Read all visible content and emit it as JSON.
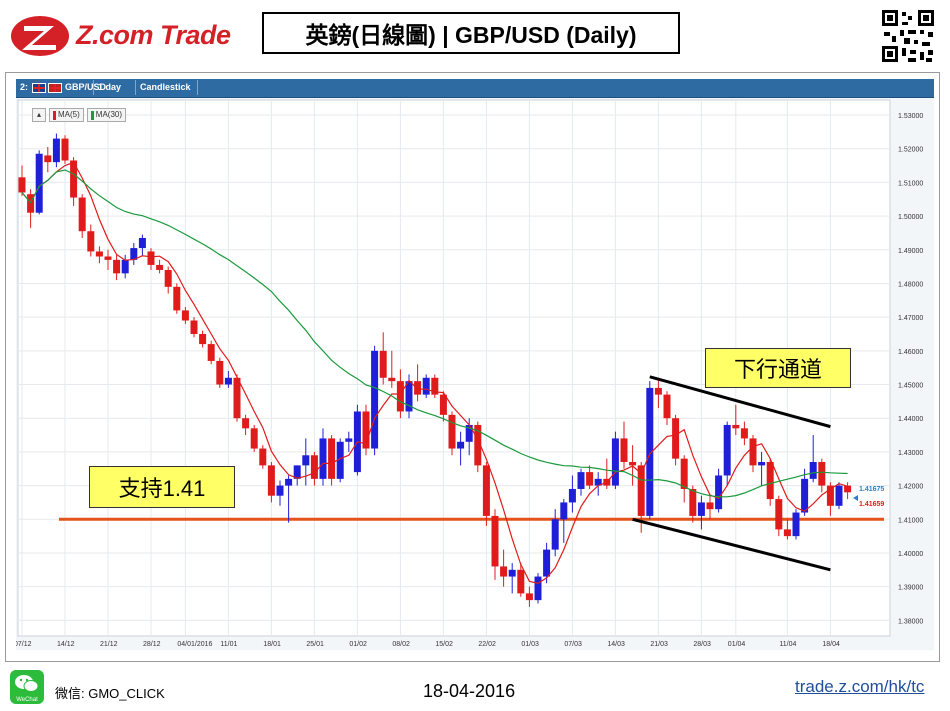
{
  "header": {
    "logo_text": "Z.com Trade",
    "title": "英鎊(日線圖) | GBP/USD (Daily)"
  },
  "toolbar": {
    "index": "2:",
    "symbol": "GBP/USD",
    "timeframe": "1 day",
    "chart_style": "Candlestick"
  },
  "legend": {
    "ma5_label": "MA(5)",
    "ma30_label": "MA(30)"
  },
  "annotations": {
    "support_label": "支持1.41",
    "channel_label": "下行通道"
  },
  "price_labels": {
    "current_blue": "1.41675",
    "current_red": "1.41659"
  },
  "colors": {
    "up_candle": "#1f1fd8",
    "down_candle": "#e01b1b",
    "ma5": "#e01b1b",
    "ma30": "#1a9a3c",
    "support_line": "#e5531a",
    "toolbar": "#2f6ba3"
  },
  "chart_data": {
    "type": "candlestick",
    "title": "GBP/USD 1 day Candlestick",
    "ylim": [
      1.376,
      1.536
    ],
    "y_ticks": [
      "1.53000",
      "1.52000",
      "1.51000",
      "1.50000",
      "1.49000",
      "1.48000",
      "1.47000",
      "1.46000",
      "1.45000",
      "1.44000",
      "1.43000",
      "1.42000",
      "1.41000",
      "1.40000",
      "1.39000",
      "1.38000"
    ],
    "x_labels": [
      {
        "i": 0,
        "label": "07/12"
      },
      {
        "i": 5,
        "label": "14/12"
      },
      {
        "i": 10,
        "label": "21/12"
      },
      {
        "i": 15,
        "label": "28/12"
      },
      {
        "i": 19,
        "label": "04/01/2016"
      },
      {
        "i": 24,
        "label": "11/01"
      },
      {
        "i": 29,
        "label": "18/01"
      },
      {
        "i": 34,
        "label": "25/01"
      },
      {
        "i": 39,
        "label": "01/02"
      },
      {
        "i": 44,
        "label": "08/02"
      },
      {
        "i": 49,
        "label": "15/02"
      },
      {
        "i": 54,
        "label": "22/02"
      },
      {
        "i": 59,
        "label": "01/03"
      },
      {
        "i": 64,
        "label": "07/03"
      },
      {
        "i": 69,
        "label": "14/03"
      },
      {
        "i": 74,
        "label": "21/03"
      },
      {
        "i": 79,
        "label": "28/03"
      },
      {
        "i": 83,
        "label": "01/04"
      },
      {
        "i": 89,
        "label": "11/04"
      },
      {
        "i": 94,
        "label": "18/04"
      }
    ],
    "candles": [
      [
        1.5115,
        1.515,
        1.506,
        1.507
      ],
      [
        1.5065,
        1.508,
        1.4965,
        1.501
      ],
      [
        1.501,
        1.5195,
        1.5005,
        1.5185
      ],
      [
        1.518,
        1.5205,
        1.513,
        1.516
      ],
      [
        1.516,
        1.5245,
        1.5145,
        1.523
      ],
      [
        1.523,
        1.524,
        1.5155,
        1.5165
      ],
      [
        1.5165,
        1.5175,
        1.503,
        1.5055
      ],
      [
        1.5055,
        1.5065,
        1.4935,
        1.4955
      ],
      [
        1.4955,
        1.4975,
        1.488,
        1.4895
      ],
      [
        1.4895,
        1.491,
        1.486,
        1.488
      ],
      [
        1.488,
        1.49,
        1.484,
        1.487
      ],
      [
        1.487,
        1.4885,
        1.481,
        1.483
      ],
      [
        1.483,
        1.4885,
        1.4815,
        1.487
      ],
      [
        1.487,
        1.492,
        1.4855,
        1.4905
      ],
      [
        1.4905,
        1.4945,
        1.488,
        1.4935
      ],
      [
        1.4895,
        1.4905,
        1.484,
        1.4855
      ],
      [
        1.4855,
        1.487,
        1.483,
        1.484
      ],
      [
        1.484,
        1.485,
        1.477,
        1.479
      ],
      [
        1.479,
        1.48,
        1.471,
        1.472
      ],
      [
        1.472,
        1.473,
        1.468,
        1.469
      ],
      [
        1.469,
        1.47,
        1.464,
        1.465
      ],
      [
        1.465,
        1.466,
        1.461,
        1.462
      ],
      [
        1.462,
        1.463,
        1.456,
        1.457
      ],
      [
        1.457,
        1.458,
        1.449,
        1.45
      ],
      [
        1.45,
        1.454,
        1.449,
        1.452
      ],
      [
        1.452,
        1.453,
        1.439,
        1.44
      ],
      [
        1.44,
        1.441,
        1.435,
        1.437
      ],
      [
        1.437,
        1.438,
        1.43,
        1.431
      ],
      [
        1.431,
        1.432,
        1.425,
        1.426
      ],
      [
        1.426,
        1.427,
        1.415,
        1.417
      ],
      [
        1.417,
        1.4215,
        1.414,
        1.42
      ],
      [
        1.42,
        1.423,
        1.409,
        1.422
      ],
      [
        1.422,
        1.426,
        1.42,
        1.426
      ],
      [
        1.426,
        1.434,
        1.42,
        1.429
      ],
      [
        1.429,
        1.43,
        1.42,
        1.422
      ],
      [
        1.422,
        1.437,
        1.42,
        1.434
      ],
      [
        1.434,
        1.435,
        1.42,
        1.422
      ],
      [
        1.422,
        1.434,
        1.421,
        1.433
      ],
      [
        1.433,
        1.436,
        1.43,
        1.434
      ],
      [
        1.424,
        1.444,
        1.423,
        1.442
      ],
      [
        1.442,
        1.444,
        1.429,
        1.431
      ],
      [
        1.431,
        1.4615,
        1.429,
        1.46
      ],
      [
        1.46,
        1.4655,
        1.45,
        1.452
      ],
      [
        1.452,
        1.46,
        1.449,
        1.451
      ],
      [
        1.451,
        1.4545,
        1.44,
        1.442
      ],
      [
        1.442,
        1.453,
        1.44,
        1.451
      ],
      [
        1.451,
        1.456,
        1.445,
        1.447
      ],
      [
        1.447,
        1.453,
        1.446,
        1.452
      ],
      [
        1.452,
        1.453,
        1.446,
        1.447
      ],
      [
        1.447,
        1.448,
        1.439,
        1.441
      ],
      [
        1.441,
        1.442,
        1.429,
        1.431
      ],
      [
        1.431,
        1.436,
        1.426,
        1.433
      ],
      [
        1.433,
        1.44,
        1.429,
        1.438
      ],
      [
        1.438,
        1.439,
        1.424,
        1.426
      ],
      [
        1.426,
        1.427,
        1.408,
        1.411
      ],
      [
        1.411,
        1.413,
        1.392,
        1.396
      ],
      [
        1.396,
        1.401,
        1.39,
        1.393
      ],
      [
        1.393,
        1.397,
        1.388,
        1.395
      ],
      [
        1.395,
        1.397,
        1.387,
        1.388
      ],
      [
        1.388,
        1.39,
        1.384,
        1.386
      ],
      [
        1.386,
        1.394,
        1.385,
        1.393
      ],
      [
        1.393,
        1.403,
        1.391,
        1.401
      ],
      [
        1.401,
        1.413,
        1.399,
        1.41
      ],
      [
        1.41,
        1.416,
        1.403,
        1.415
      ],
      [
        1.415,
        1.423,
        1.412,
        1.419
      ],
      [
        1.419,
        1.425,
        1.417,
        1.424
      ],
      [
        1.424,
        1.426,
        1.419,
        1.42
      ],
      [
        1.42,
        1.424,
        1.417,
        1.422
      ],
      [
        1.422,
        1.428,
        1.419,
        1.42
      ],
      [
        1.42,
        1.436,
        1.419,
        1.434
      ],
      [
        1.434,
        1.439,
        1.425,
        1.427
      ],
      [
        1.427,
        1.432,
        1.42,
        1.426
      ],
      [
        1.426,
        1.427,
        1.406,
        1.411
      ],
      [
        1.411,
        1.451,
        1.41,
        1.449
      ],
      [
        1.449,
        1.452,
        1.443,
        1.447
      ],
      [
        1.447,
        1.448,
        1.438,
        1.44
      ],
      [
        1.44,
        1.441,
        1.426,
        1.428
      ],
      [
        1.428,
        1.429,
        1.415,
        1.419
      ],
      [
        1.419,
        1.42,
        1.409,
        1.411
      ],
      [
        1.411,
        1.417,
        1.407,
        1.415
      ],
      [
        1.415,
        1.417,
        1.41,
        1.413
      ],
      [
        1.413,
        1.425,
        1.412,
        1.423
      ],
      [
        1.423,
        1.439,
        1.42,
        1.438
      ],
      [
        1.438,
        1.444,
        1.435,
        1.437
      ],
      [
        1.437,
        1.439,
        1.432,
        1.434
      ],
      [
        1.434,
        1.435,
        1.424,
        1.426
      ],
      [
        1.426,
        1.43,
        1.42,
        1.427
      ],
      [
        1.427,
        1.428,
        1.414,
        1.416
      ],
      [
        1.416,
        1.417,
        1.405,
        1.407
      ],
      [
        1.407,
        1.41,
        1.404,
        1.405
      ],
      [
        1.405,
        1.413,
        1.404,
        1.412
      ],
      [
        1.412,
        1.425,
        1.411,
        1.422
      ],
      [
        1.422,
        1.435,
        1.421,
        1.427
      ],
      [
        1.427,
        1.428,
        1.418,
        1.42
      ],
      [
        1.42,
        1.421,
        1.411,
        1.414
      ],
      [
        1.414,
        1.421,
        1.413,
        1.42
      ],
      [
        1.42,
        1.421,
        1.416,
        1.418
      ]
    ],
    "series": [
      {
        "name": "MA(5)",
        "period": 5,
        "color": "#e01b1b"
      },
      {
        "name": "MA(30)",
        "period": 30,
        "color": "#1a9a3c"
      }
    ],
    "support_level": 1.41,
    "channel": {
      "upper": [
        [
          73,
          1.4523
        ],
        [
          94,
          1.4375
        ]
      ],
      "lower": [
        [
          71,
          1.41
        ],
        [
          94,
          1.395
        ]
      ]
    },
    "grid": true
  },
  "footer": {
    "wechat_label": "微信: GMO_CLICK",
    "wechat_icon_text": "WeChat",
    "date": "18-04-2016",
    "link": "trade.z.com/hk/tc"
  }
}
